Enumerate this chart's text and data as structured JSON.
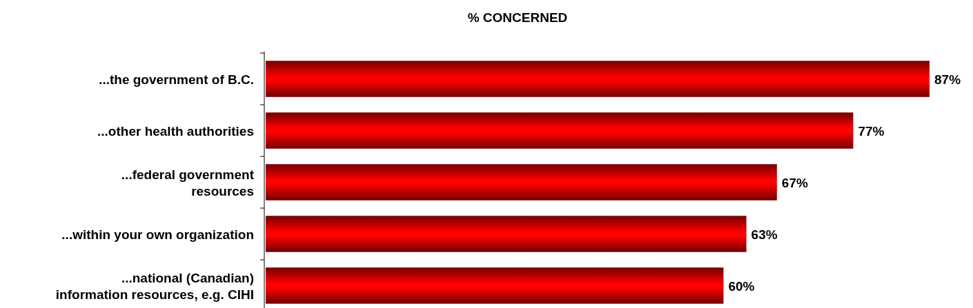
{
  "chart_data": {
    "type": "bar",
    "orientation": "horizontal",
    "title": "% CONCERNED",
    "categories": [
      "...the government of B.C.",
      "...other health authorities",
      "...federal government\nresources",
      "...within your own organization",
      "...national (Canadian)\ninformation resources, e.g. CIHI"
    ],
    "values": [
      87,
      77,
      67,
      63,
      60
    ],
    "value_labels": [
      "87%",
      "77%",
      "67%",
      "63%",
      "60%"
    ],
    "color": "#ff0000"
  }
}
